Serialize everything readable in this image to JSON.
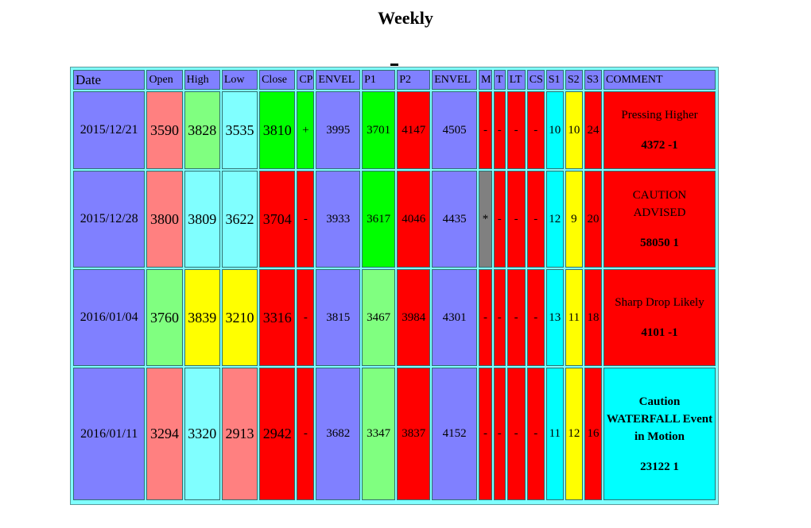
{
  "title": "Weekly",
  "columns": [
    "Date",
    "Open",
    "High",
    "Low",
    "Close",
    "CP",
    "ENVEL",
    "P1",
    "P2",
    "ENVEL",
    "M",
    "T",
    "LT",
    "CS",
    "S1",
    "S2",
    "S3",
    "COMMENT"
  ],
  "rows": [
    {
      "cells": [
        "2015/12/21",
        "3590",
        "3828",
        "3535",
        "3810",
        "+",
        "3995",
        "3701",
        "4147",
        "4505",
        "-",
        "-",
        "-",
        "-",
        "10",
        "10",
        "24"
      ],
      "colors": [
        "blue",
        "salmon",
        "lgreen",
        "cyan",
        "green",
        "green",
        "blue",
        "green",
        "red",
        "blue",
        "red",
        "red",
        "red",
        "red",
        "cyan2",
        "yellow",
        "red"
      ],
      "comment_title": "Pressing Higher",
      "comment_num": "4372 -1",
      "comment_color": "red",
      "comment_bold": false
    },
    {
      "cells": [
        "2015/12/28",
        "3800",
        "3809",
        "3622",
        "3704",
        "-",
        "3933",
        "3617",
        "4046",
        "4435",
        "*",
        "-",
        "-",
        "-",
        "12",
        "9",
        "20"
      ],
      "colors": [
        "blue",
        "salmon",
        "cyan",
        "cyan",
        "red",
        "red",
        "blue",
        "green",
        "red",
        "blue",
        "gray",
        "red",
        "red",
        "red",
        "cyan2",
        "yellow",
        "red"
      ],
      "comment_title": "CAUTION ADVISED",
      "comment_num": "58050 1",
      "comment_color": "red",
      "comment_bold": false
    },
    {
      "cells": [
        "2016/01/04",
        "3760",
        "3839",
        "3210",
        "3316",
        "-",
        "3815",
        "3467",
        "3984",
        "4301",
        "-",
        "-",
        "-",
        "-",
        "13",
        "11",
        "18"
      ],
      "colors": [
        "blue",
        "lgreen",
        "yellow",
        "yellow",
        "red",
        "red",
        "blue",
        "lgreen",
        "red",
        "blue",
        "red",
        "red",
        "red",
        "red",
        "cyan2",
        "yellow",
        "red"
      ],
      "comment_title": "Sharp Drop Likely",
      "comment_num": "4101 -1",
      "comment_color": "red",
      "comment_bold": false
    },
    {
      "cells": [
        "2016/01/11",
        "3294",
        "3320",
        "2913",
        "2942",
        "-",
        "3682",
        "3347",
        "3837",
        "4152",
        "-",
        "-",
        "-",
        "-",
        "11",
        "12",
        "16"
      ],
      "colors": [
        "blue",
        "salmon",
        "cyan",
        "salmon",
        "red",
        "red",
        "blue",
        "lgreen",
        "red",
        "blue",
        "red",
        "red",
        "red",
        "red",
        "cyan2",
        "yellow",
        "red"
      ],
      "comment_title": "Caution WATERFALL Event in Motion",
      "comment_num": "23122 1",
      "comment_color": "cyan2",
      "comment_bold": true
    }
  ]
}
